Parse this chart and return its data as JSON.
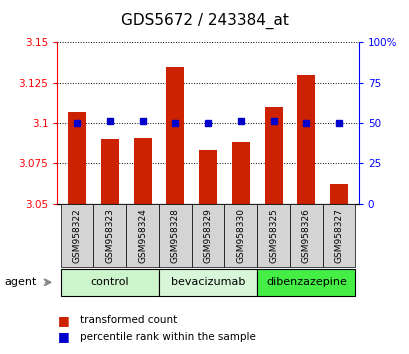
{
  "title": "GDS5672 / 243384_at",
  "samples": [
    "GSM958322",
    "GSM958323",
    "GSM958324",
    "GSM958328",
    "GSM958329",
    "GSM958330",
    "GSM958325",
    "GSM958326",
    "GSM958327"
  ],
  "red_values": [
    3.107,
    3.09,
    3.091,
    3.135,
    3.083,
    3.088,
    3.11,
    3.13,
    3.062
  ],
  "blue_values": [
    50,
    51,
    51,
    50,
    50,
    51,
    51,
    50,
    50
  ],
  "ylim_left": [
    3.05,
    3.15
  ],
  "ylim_right": [
    0,
    100
  ],
  "yticks_left": [
    3.05,
    3.075,
    3.1,
    3.125,
    3.15
  ],
  "yticks_right": [
    0,
    25,
    50,
    75,
    100
  ],
  "ytick_labels_right": [
    "0",
    "25",
    "50",
    "75",
    "100%"
  ],
  "ytick_labels_left": [
    "3.05",
    "3.075",
    "3.1",
    "3.125",
    "3.15"
  ],
  "groups": [
    {
      "label": "control",
      "indices": [
        0,
        1,
        2
      ],
      "color": "#ccf5cc"
    },
    {
      "label": "bevacizumab",
      "indices": [
        3,
        4,
        5
      ],
      "color": "#d8f7d8"
    },
    {
      "label": "dibenzazepine",
      "indices": [
        6,
        7,
        8
      ],
      "color": "#44ee44"
    }
  ],
  "bar_color": "#cc2200",
  "dot_color": "#0000cc",
  "bar_width": 0.55,
  "agent_label": "agent",
  "legend_red": "transformed count",
  "legend_blue": "percentile rank within the sample",
  "sample_box_color": "#d4d4d4",
  "grid_color": "#000000",
  "title_fontsize": 11,
  "tick_fontsize": 7.5,
  "sample_fontsize": 6.5,
  "group_fontsize": 8,
  "legend_fontsize": 7.5
}
